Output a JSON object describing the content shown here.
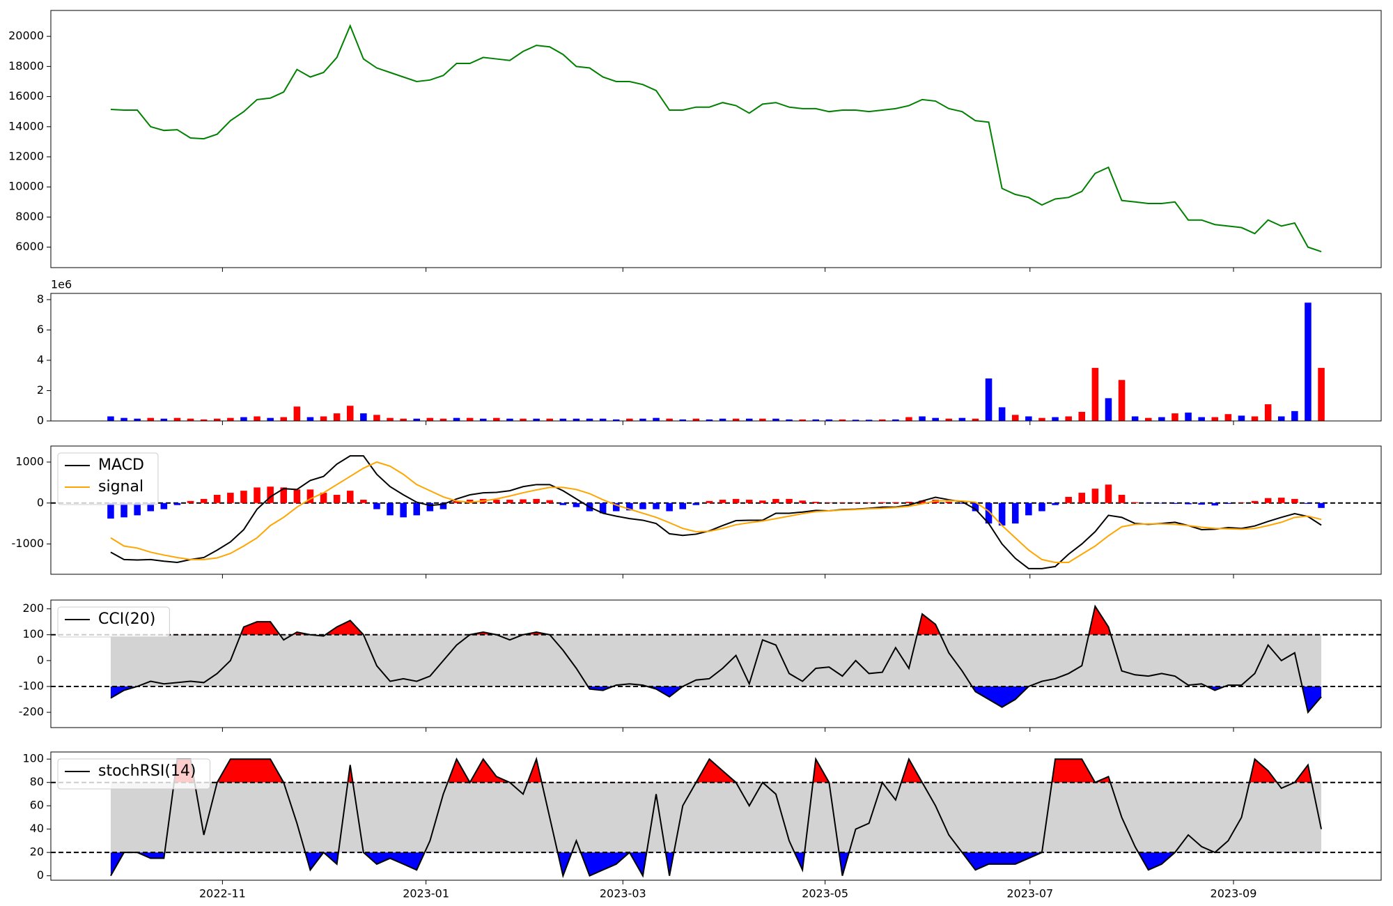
{
  "chart_data": [
    {
      "type": "line",
      "ylim": [
        4640,
        21720
      ],
      "yticks": [
        6000,
        8000,
        10000,
        12000,
        14000,
        16000,
        18000,
        20000
      ],
      "series": [
        {
          "color": "#008000",
          "values": [
            15150,
            15100,
            15100,
            14000,
            13750,
            13800,
            13250,
            13200,
            13500,
            14400,
            15000,
            15800,
            15900,
            16300,
            17800,
            17300,
            17600,
            18600,
            20700,
            18500,
            17900,
            17600,
            17300,
            17000,
            17100,
            17400,
            18200,
            18200,
            18600,
            18500,
            18400,
            19000,
            19400,
            19300,
            18800,
            18000,
            17900,
            17300,
            17000,
            17000,
            16800,
            16400,
            15100,
            15100,
            15300,
            15300,
            15600,
            15400,
            14900,
            15500,
            15600,
            15300,
            15200,
            15200,
            15000,
            15100,
            15100,
            15000,
            15100,
            15200,
            15400,
            15800,
            15700,
            15200,
            15000,
            14400,
            14300,
            9900,
            9500,
            9300,
            8800,
            9200,
            9300,
            9700,
            10900,
            11300,
            9100,
            9000,
            8900,
            8900,
            9000,
            7800,
            7800,
            7500,
            7400,
            7300,
            6900,
            7800,
            7400,
            7600,
            6000,
            5700
          ]
        }
      ]
    },
    {
      "type": "bar",
      "ylim": [
        0,
        8410000
      ],
      "y_offset_label": "1e6",
      "yticks": [
        0,
        {
          "value": 2000000,
          "label": "2"
        },
        {
          "value": 4000000,
          "label": "4"
        },
        {
          "value": 6000000,
          "label": "6"
        },
        {
          "value": 8000000,
          "label": "8"
        }
      ],
      "series": [
        {
          "values": [
            300000,
            200000,
            150000,
            200000,
            150000,
            200000,
            150000,
            100000,
            150000,
            200000,
            250000,
            300000,
            200000,
            250000,
            950000,
            250000,
            300000,
            500000,
            1000000,
            500000,
            400000,
            200000,
            150000,
            150000,
            200000,
            150000,
            200000,
            200000,
            150000,
            200000,
            150000,
            150000,
            150000,
            150000,
            150000,
            150000,
            150000,
            150000,
            100000,
            150000,
            150000,
            200000,
            150000,
            100000,
            150000,
            100000,
            150000,
            150000,
            150000,
            150000,
            150000,
            100000,
            100000,
            100000,
            100000,
            100000,
            80000,
            80000,
            100000,
            100000,
            250000,
            300000,
            200000,
            150000,
            200000,
            150000,
            2800000,
            900000,
            400000,
            300000,
            200000,
            250000,
            300000,
            600000,
            3500000,
            1500000,
            2700000,
            300000,
            200000,
            250000,
            500000,
            550000,
            250000,
            250000,
            450000,
            350000,
            300000,
            1100000,
            300000,
            650000,
            7800000,
            3500000
          ],
          "colors": [
            "#0000ff",
            "#0000ff",
            "#0000ff",
            "#ff0000",
            "#0000ff",
            "#ff0000",
            "#ff0000",
            "#ff0000",
            "#ff0000",
            "#ff0000",
            "#0000ff",
            "#ff0000",
            "#0000ff",
            "#ff0000",
            "#ff0000",
            "#0000ff",
            "#ff0000",
            "#ff0000",
            "#ff0000",
            "#0000ff",
            "#ff0000",
            "#ff0000",
            "#ff0000",
            "#0000ff",
            "#ff0000",
            "#ff0000",
            "#0000ff",
            "#ff0000",
            "#0000ff",
            "#ff0000",
            "#0000ff",
            "#ff0000",
            "#0000ff",
            "#ff0000",
            "#0000ff",
            "#0000ff",
            "#0000ff",
            "#0000ff",
            "#0000ff",
            "#ff0000",
            "#0000ff",
            "#0000ff",
            "#ff0000",
            "#0000ff",
            "#ff0000",
            "#0000ff",
            "#0000ff",
            "#ff0000",
            "#0000ff",
            "#ff0000",
            "#0000ff",
            "#0000ff",
            "#ff0000",
            "#0000ff",
            "#0000ff",
            "#ff0000",
            "#0000ff",
            "#0000ff",
            "#ff0000",
            "#0000ff",
            "#ff0000",
            "#0000ff",
            "#0000ff",
            "#ff0000",
            "#0000ff",
            "#ff0000",
            "#0000ff",
            "#0000ff",
            "#ff0000",
            "#0000ff",
            "#ff0000",
            "#0000ff",
            "#ff0000",
            "#ff0000",
            "#ff0000",
            "#0000ff",
            "#ff0000",
            "#0000ff",
            "#ff0000",
            "#0000ff",
            "#ff0000",
            "#0000ff",
            "#0000ff",
            "#ff0000",
            "#ff0000",
            "#0000ff",
            "#ff0000",
            "#ff0000",
            "#0000ff",
            "#0000ff",
            "#0000ff",
            "#ff0000"
          ]
        }
      ]
    },
    {
      "type": "line",
      "ylim": [
        -1739,
        1391
      ],
      "yticks": [
        -1000,
        0,
        1000
      ],
      "levels": [
        0
      ],
      "legend": "upper left",
      "series": [
        {
          "type": "bar",
          "up_color": "#ff0000",
          "down_color": "#0000ff",
          "values": [
            -380,
            -350,
            -300,
            -200,
            -150,
            -50,
            50,
            100,
            200,
            250,
            300,
            380,
            400,
            380,
            330,
            330,
            250,
            200,
            300,
            80,
            -150,
            -300,
            -350,
            -300,
            -200,
            -150,
            50,
            80,
            100,
            80,
            80,
            90,
            100,
            70,
            -50,
            -100,
            -200,
            -250,
            -200,
            -180,
            -150,
            -150,
            -200,
            -150,
            -50,
            50,
            80,
            100,
            80,
            60,
            100,
            100,
            60,
            30,
            10,
            10,
            10,
            10,
            20,
            20,
            30,
            60,
            80,
            30,
            -20,
            -200,
            -500,
            -550,
            -500,
            -300,
            -200,
            -50,
            150,
            250,
            350,
            450,
            200,
            20,
            -10,
            -10,
            -20,
            -30,
            -40,
            -60,
            -20,
            10,
            50,
            120,
            130,
            100,
            -20,
            -120
          ]
        },
        {
          "name": "MACD",
          "color": "#000000",
          "values": [
            -1200,
            -1380,
            -1390,
            -1380,
            -1420,
            -1450,
            -1380,
            -1330,
            -1150,
            -950,
            -650,
            -150,
            150,
            350,
            330,
            550,
            650,
            950,
            1150,
            1150,
            700,
            400,
            200,
            20,
            -60,
            -30,
            100,
            200,
            250,
            260,
            300,
            400,
            450,
            450,
            300,
            100,
            -100,
            -250,
            -320,
            -380,
            -420,
            -500,
            -750,
            -790,
            -760,
            -680,
            -550,
            -430,
            -420,
            -420,
            -250,
            -250,
            -220,
            -180,
            -190,
            -160,
            -150,
            -130,
            -100,
            -100,
            -50,
            50,
            140,
            80,
            30,
            -150,
            -500,
            -1000,
            -1350,
            -1600,
            -1600,
            -1550,
            -1250,
            -1000,
            -700,
            -300,
            -350,
            -500,
            -520,
            -500,
            -470,
            -550,
            -650,
            -640,
            -600,
            -620,
            -560,
            -450,
            -350,
            -260,
            -330,
            -540
          ]
        },
        {
          "name": "signal",
          "color": "#ffa500",
          "values": [
            -850,
            -1050,
            -1100,
            -1200,
            -1270,
            -1330,
            -1380,
            -1380,
            -1340,
            -1230,
            -1050,
            -850,
            -550,
            -350,
            -100,
            100,
            250,
            450,
            650,
            850,
            1000,
            900,
            700,
            450,
            300,
            150,
            50,
            20,
            50,
            100,
            170,
            250,
            320,
            380,
            380,
            330,
            230,
            80,
            -50,
            -150,
            -250,
            -350,
            -480,
            -620,
            -700,
            -690,
            -620,
            -530,
            -480,
            -440,
            -380,
            -320,
            -260,
            -210,
            -190,
            -170,
            -160,
            -140,
            -130,
            -110,
            -80,
            -20,
            50,
            60,
            50,
            20,
            -200,
            -550,
            -850,
            -1150,
            -1380,
            -1450,
            -1450,
            -1250,
            -1050,
            -800,
            -580,
            -520,
            -510,
            -510,
            -520,
            -550,
            -590,
            -620,
            -630,
            -640,
            -620,
            -550,
            -470,
            -350,
            -320,
            -400
          ]
        }
      ]
    },
    {
      "type": "line",
      "ylim": [
        -259,
        234
      ],
      "yticks": [
        -200,
        -100,
        0,
        100,
        200
      ],
      "levels": [
        -100,
        100
      ],
      "band_color": "#d3d3d3",
      "above_color": "#ff0000",
      "below_color": "#0000ff",
      "legend": "upper left",
      "series": [
        {
          "name": "CCI(20)",
          "color": "#000000",
          "values": [
            -145,
            -115,
            -100,
            -80,
            -90,
            -85,
            -80,
            -85,
            -50,
            0,
            130,
            150,
            150,
            80,
            110,
            100,
            95,
            130,
            155,
            100,
            -20,
            -80,
            -70,
            -80,
            -60,
            0,
            60,
            100,
            110,
            100,
            80,
            100,
            110,
            100,
            40,
            -30,
            -110,
            -115,
            -95,
            -90,
            -95,
            -110,
            -140,
            -100,
            -75,
            -70,
            -30,
            20,
            -90,
            80,
            60,
            -50,
            -80,
            -30,
            -25,
            -60,
            0,
            -50,
            -45,
            50,
            -30,
            180,
            140,
            30,
            -40,
            -120,
            -150,
            -180,
            -150,
            -100,
            -80,
            -70,
            -50,
            -20,
            210,
            130,
            -40,
            -55,
            -60,
            -50,
            -60,
            -95,
            -90,
            -115,
            -95,
            -95,
            -50,
            60,
            0,
            30,
            -200,
            -140
          ]
        }
      ]
    },
    {
      "type": "line",
      "ylim": [
        -3.8,
        106.1
      ],
      "yticks": [
        0,
        20,
        40,
        60,
        80,
        100
      ],
      "levels": [
        20,
        80
      ],
      "band_color": "#d3d3d3",
      "above_color": "#ff0000",
      "below_color": "#0000ff",
      "legend": "upper left",
      "xlim": [
        -4.5,
        95.5
      ],
      "xticks": [
        {
          "value": 8.4,
          "label": "2022-11"
        },
        {
          "value": 23.7,
          "label": "2023-01"
        },
        {
          "value": 38.5,
          "label": "2023-03"
        },
        {
          "value": 53.7,
          "label": "2023-05"
        },
        {
          "value": 69.1,
          "label": "2023-07"
        },
        {
          "value": 84.4,
          "label": "2023-09"
        }
      ],
      "series": [
        {
          "name": "stochRSI(14)",
          "color": "#000000",
          "values": [
            0,
            20,
            20,
            15,
            15,
            100,
            100,
            35,
            80,
            100,
            100,
            100,
            100,
            80,
            45,
            5,
            20,
            10,
            95,
            20,
            10,
            15,
            10,
            5,
            30,
            70,
            100,
            80,
            100,
            85,
            80,
            70,
            100,
            50,
            0,
            30,
            0,
            5,
            10,
            20,
            0,
            70,
            0,
            60,
            80,
            100,
            90,
            80,
            60,
            80,
            70,
            30,
            5,
            100,
            80,
            0,
            40,
            45,
            80,
            65,
            100,
            80,
            60,
            35,
            20,
            5,
            10,
            10,
            10,
            15,
            20,
            100,
            100,
            100,
            80,
            85,
            50,
            25,
            5,
            10,
            20,
            35,
            25,
            20,
            30,
            50,
            100,
            90,
            75,
            80,
            95,
            40
          ]
        }
      ]
    }
  ]
}
